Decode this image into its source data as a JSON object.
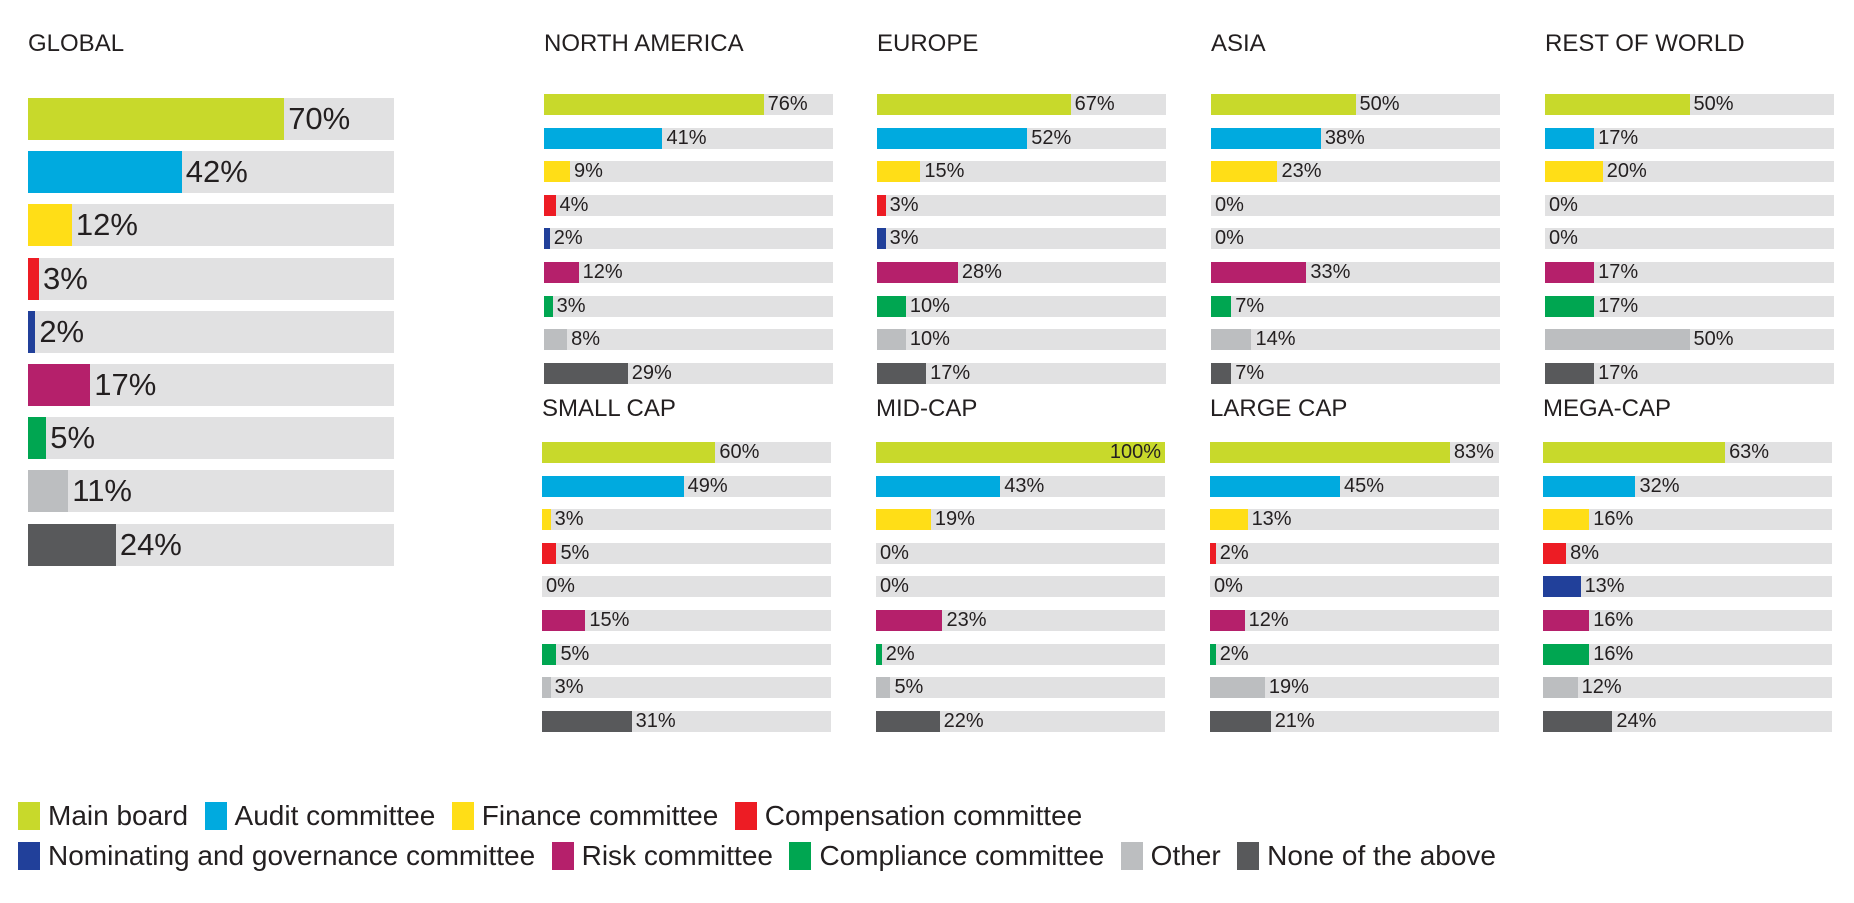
{
  "categories": [
    {
      "name": "Main board",
      "color": "#c8d92b"
    },
    {
      "name": "Audit committee",
      "color": "#00aadf"
    },
    {
      "name": "Finance committee",
      "color": "#ffde17"
    },
    {
      "name": "Compensation committee",
      "color": "#ed1c24"
    },
    {
      "name": "Nominating and governance committee",
      "color": "#21409a"
    },
    {
      "name": "Risk committee",
      "color": "#b5206b"
    },
    {
      "name": "Compliance committee",
      "color": "#00a651"
    },
    {
      "name": "Other",
      "color": "#bcbec0"
    },
    {
      "name": "None of the above",
      "color": "#58595b"
    }
  ],
  "chart_data": [
    {
      "type": "bar",
      "title": "GLOBAL",
      "xlim": [
        0,
        100
      ],
      "values": [
        70,
        42,
        12,
        3,
        2,
        17,
        5,
        11,
        24
      ],
      "labels": [
        "70%",
        "42%",
        "12%",
        "3%",
        "2%",
        "17%",
        "5%",
        "11%",
        "24%"
      ]
    },
    {
      "type": "bar",
      "title": "NORTH AMERICA",
      "xlim": [
        0,
        100
      ],
      "values": [
        76,
        41,
        9,
        4,
        2,
        12,
        3,
        8,
        29
      ],
      "labels": [
        "76%",
        "41%",
        "9%",
        "4%",
        "2%",
        "12%",
        "3%",
        "8%",
        "29%"
      ]
    },
    {
      "type": "bar",
      "title": "EUROPE",
      "xlim": [
        0,
        100
      ],
      "values": [
        67,
        52,
        15,
        3,
        3,
        28,
        10,
        10,
        17
      ],
      "labels": [
        "67%",
        "52%",
        "15%",
        "3%",
        "3%",
        "28%",
        "10%",
        "10%",
        "17%"
      ]
    },
    {
      "type": "bar",
      "title": "ASIA",
      "xlim": [
        0,
        100
      ],
      "values": [
        50,
        38,
        23,
        0,
        0,
        33,
        7,
        14,
        7
      ],
      "labels": [
        "50%",
        "38%",
        "23%",
        "0%",
        "0%",
        "33%",
        "7%",
        "14%",
        "7%"
      ]
    },
    {
      "type": "bar",
      "title": "REST OF WORLD",
      "xlim": [
        0,
        100
      ],
      "values": [
        50,
        17,
        20,
        0,
        0,
        17,
        17,
        50,
        17
      ],
      "labels": [
        "50%",
        "17%",
        "20%",
        "0%",
        "0%",
        "17%",
        "17%",
        "50%",
        "17%"
      ]
    },
    {
      "type": "bar",
      "title": "SMALL CAP",
      "xlim": [
        0,
        100
      ],
      "values": [
        60,
        49,
        3,
        5,
        0,
        15,
        5,
        3,
        31
      ],
      "labels": [
        "60%",
        "49%",
        "3%",
        "5%",
        "0%",
        "15%",
        "5%",
        "3%",
        "31%"
      ]
    },
    {
      "type": "bar",
      "title": "MID-CAP",
      "xlim": [
        0,
        100
      ],
      "values": [
        100,
        43,
        19,
        0,
        0,
        23,
        2,
        5,
        22
      ],
      "labels": [
        "100%",
        "43%",
        "19%",
        "0%",
        "0%",
        "23%",
        "2%",
        "5%",
        "22%"
      ]
    },
    {
      "type": "bar",
      "title": "LARGE CAP",
      "xlim": [
        0,
        100
      ],
      "values": [
        83,
        45,
        13,
        2,
        0,
        12,
        2,
        19,
        21
      ],
      "labels": [
        "83%",
        "45%",
        "13%",
        "2%",
        "0%",
        "12%",
        "2%",
        "19%",
        "21%"
      ]
    },
    {
      "type": "bar",
      "title": "MEGA-CAP",
      "xlim": [
        0,
        100
      ],
      "values": [
        63,
        32,
        16,
        8,
        13,
        16,
        16,
        12,
        24
      ],
      "labels": [
        "63%",
        "32%",
        "16%",
        "8%",
        "13%",
        "16%",
        "16%",
        "12%",
        "24%"
      ]
    }
  ]
}
